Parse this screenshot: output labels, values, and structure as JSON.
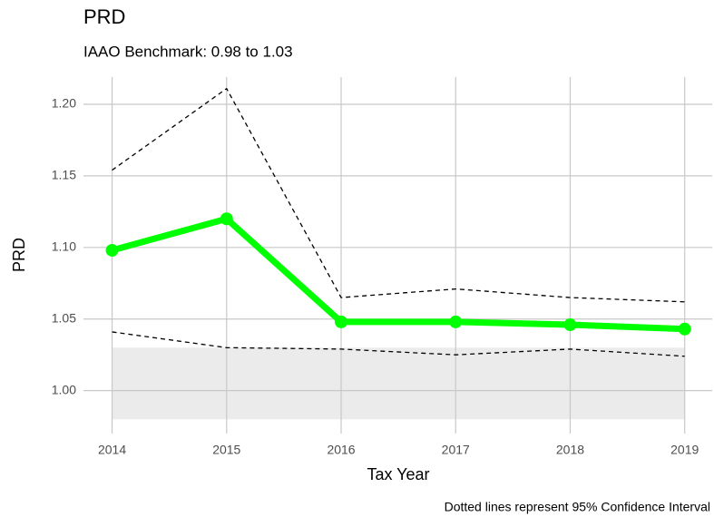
{
  "chart_data": {
    "type": "line",
    "title": "PRD",
    "subtitle": "IAAO Benchmark: 0.98 to 1.03",
    "x_label": "Tax Year",
    "y_label": "PRD",
    "caption": "Dotted lines represent 95% Confidence Interval",
    "x": [
      2014,
      2015,
      2016,
      2017,
      2018,
      2019
    ],
    "series": [
      {
        "color": "#00ff00",
        "linestyle": "solid",
        "markers": true,
        "values": [
          1.098,
          1.12,
          1.048,
          1.048,
          1.046,
          1.043
        ]
      },
      {
        "color": "#000000",
        "linestyle": "dashed",
        "markers": false,
        "values": [
          1.154,
          1.211,
          1.065,
          1.071,
          1.065,
          1.062
        ]
      },
      {
        "color": "#000000",
        "linestyle": "dashed",
        "markers": false,
        "values": [
          1.041,
          1.03,
          1.029,
          1.025,
          1.029,
          1.024
        ]
      }
    ],
    "benchmark": {
      "range": [
        0.98,
        1.03
      ],
      "color": "#ebebeb"
    },
    "xlim": [
      2013.75,
      2019.24
    ],
    "xticks": [
      2014,
      2015,
      2016,
      2017,
      2018,
      2019
    ],
    "ylim": [
      0.97,
      1.219
    ],
    "yticks": [
      {
        "value": 1.0,
        "label": "1.00"
      },
      {
        "value": 1.05,
        "label": "1.05"
      },
      {
        "value": 1.1,
        "label": "1.10"
      },
      {
        "value": 1.15,
        "label": "1.15"
      },
      {
        "value": 1.2,
        "label": "1.20"
      }
    ],
    "grid": true
  }
}
